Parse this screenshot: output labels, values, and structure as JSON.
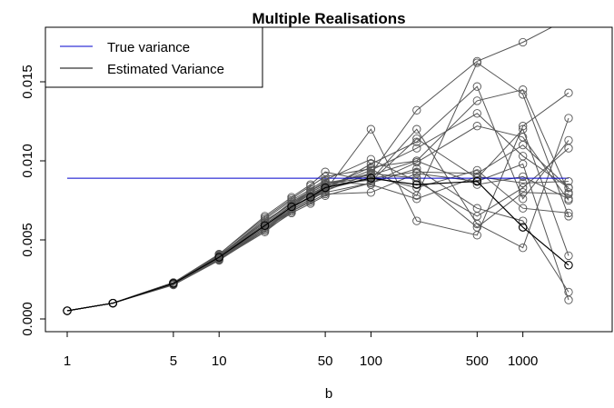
{
  "chart_data": {
    "type": "line",
    "title": "Multiple Realisations",
    "xlabel": "b",
    "ylabel": "",
    "x_scale": "log",
    "x_ticks": [
      1,
      5,
      10,
      50,
      100,
      500,
      1000
    ],
    "x_tick_labels": [
      "1",
      "5",
      "10",
      "50",
      "100",
      "500",
      "1000"
    ],
    "y_ticks": [
      0.0,
      0.005,
      0.01,
      0.015
    ],
    "y_tick_labels": [
      "0.000",
      "0.005",
      "0.010",
      "0.015"
    ],
    "xlim": [
      1,
      2000
    ],
    "ylim": [
      0.0,
      0.0175
    ],
    "x": [
      1,
      2,
      5,
      10,
      20,
      30,
      40,
      50,
      100,
      200,
      500,
      1000,
      2000
    ],
    "true_variance": 0.0089,
    "series_colors": {
      "true_variance": "#0000cc",
      "estimated": "#000000",
      "realisations": "#555555"
    },
    "legend": {
      "position": "top-left",
      "entries": [
        {
          "label": "True variance",
          "color": "#0000cc"
        },
        {
          "label": "Estimated Variance",
          "color": "#000000"
        }
      ]
    },
    "estimated_variance": [
      0.00052,
      0.001,
      0.00225,
      0.0039,
      0.0059,
      0.0071,
      0.0077,
      0.0083,
      0.0089,
      0.0085,
      0.0087,
      0.0058,
      0.0034
    ],
    "realisations": [
      [
        0.00052,
        0.001,
        0.0023,
        0.004,
        0.0062,
        0.0073,
        0.008,
        0.0085,
        0.0092,
        0.0132,
        0.0163,
        0.0175,
        0.019
      ],
      [
        0.00052,
        0.001,
        0.0022,
        0.0038,
        0.0057,
        0.0069,
        0.0076,
        0.0081,
        0.012,
        0.0062,
        0.0053,
        0.0122,
        0.0143
      ],
      [
        0.00052,
        0.001,
        0.00225,
        0.00395,
        0.006,
        0.0072,
        0.0079,
        0.0084,
        0.0088,
        0.012,
        0.006,
        0.0045,
        0.0127
      ],
      [
        0.00052,
        0.001,
        0.0023,
        0.0041,
        0.0064,
        0.0076,
        0.0084,
        0.009,
        0.0095,
        0.0078,
        0.0162,
        0.0142,
        0.0065
      ],
      [
        0.00052,
        0.001,
        0.0022,
        0.00375,
        0.0055,
        0.0068,
        0.0074,
        0.0079,
        0.008,
        0.0092,
        0.0087,
        0.0098,
        0.0012
      ],
      [
        0.00052,
        0.001,
        0.00225,
        0.00385,
        0.0058,
        0.007,
        0.0077,
        0.0082,
        0.0098,
        0.0112,
        0.0147,
        0.0076,
        0.0113
      ],
      [
        0.00052,
        0.001,
        0.0023,
        0.00405,
        0.0061,
        0.0074,
        0.0081,
        0.0086,
        0.0091,
        0.01,
        0.0138,
        0.0145,
        0.008
      ],
      [
        0.00052,
        0.001,
        0.00215,
        0.0037,
        0.0056,
        0.0067,
        0.0073,
        0.0078,
        0.0086,
        0.0095,
        0.007,
        0.0062,
        0.0017
      ],
      [
        0.00052,
        0.001,
        0.00225,
        0.0039,
        0.0059,
        0.0071,
        0.0079,
        0.0083,
        0.0094,
        0.0108,
        0.013,
        0.0103,
        0.0083
      ],
      [
        0.00052,
        0.001,
        0.0023,
        0.004,
        0.0063,
        0.0075,
        0.0082,
        0.0088,
        0.0101,
        0.0087,
        0.0065,
        0.0083,
        0.0108
      ],
      [
        0.00052,
        0.001,
        0.0022,
        0.0038,
        0.0056,
        0.0069,
        0.0076,
        0.008,
        0.0086,
        0.0099,
        0.0122,
        0.0115,
        0.0075
      ],
      [
        0.00052,
        0.001,
        0.00225,
        0.00395,
        0.006,
        0.0072,
        0.008,
        0.0085,
        0.009,
        0.0083,
        0.0094,
        0.007,
        0.0067
      ],
      [
        0.00052,
        0.001,
        0.0023,
        0.0041,
        0.0065,
        0.0077,
        0.0085,
        0.0093,
        0.0087,
        0.0114,
        0.0089,
        0.012,
        0.004
      ],
      [
        0.00052,
        0.001,
        0.0022,
        0.00375,
        0.0057,
        0.0068,
        0.0075,
        0.0081,
        0.0092,
        0.0089,
        0.0058,
        0.008,
        0.0079
      ],
      [
        0.00052,
        0.001,
        0.00225,
        0.00385,
        0.0059,
        0.007,
        0.0078,
        0.0083,
        0.0096,
        0.01,
        0.0085,
        0.009,
        0.0076
      ],
      [
        0.00052,
        0.001,
        0.0023,
        0.004,
        0.0061,
        0.0073,
        0.0081,
        0.0087,
        0.0085,
        0.0076,
        0.009,
        0.0086,
        0.0087
      ],
      [
        0.00052,
        0.001,
        0.0022,
        0.0038,
        0.0058,
        0.0069,
        0.0076,
        0.0082,
        0.0089,
        0.0093,
        0.0092,
        0.011,
        0.0083
      ]
    ]
  }
}
